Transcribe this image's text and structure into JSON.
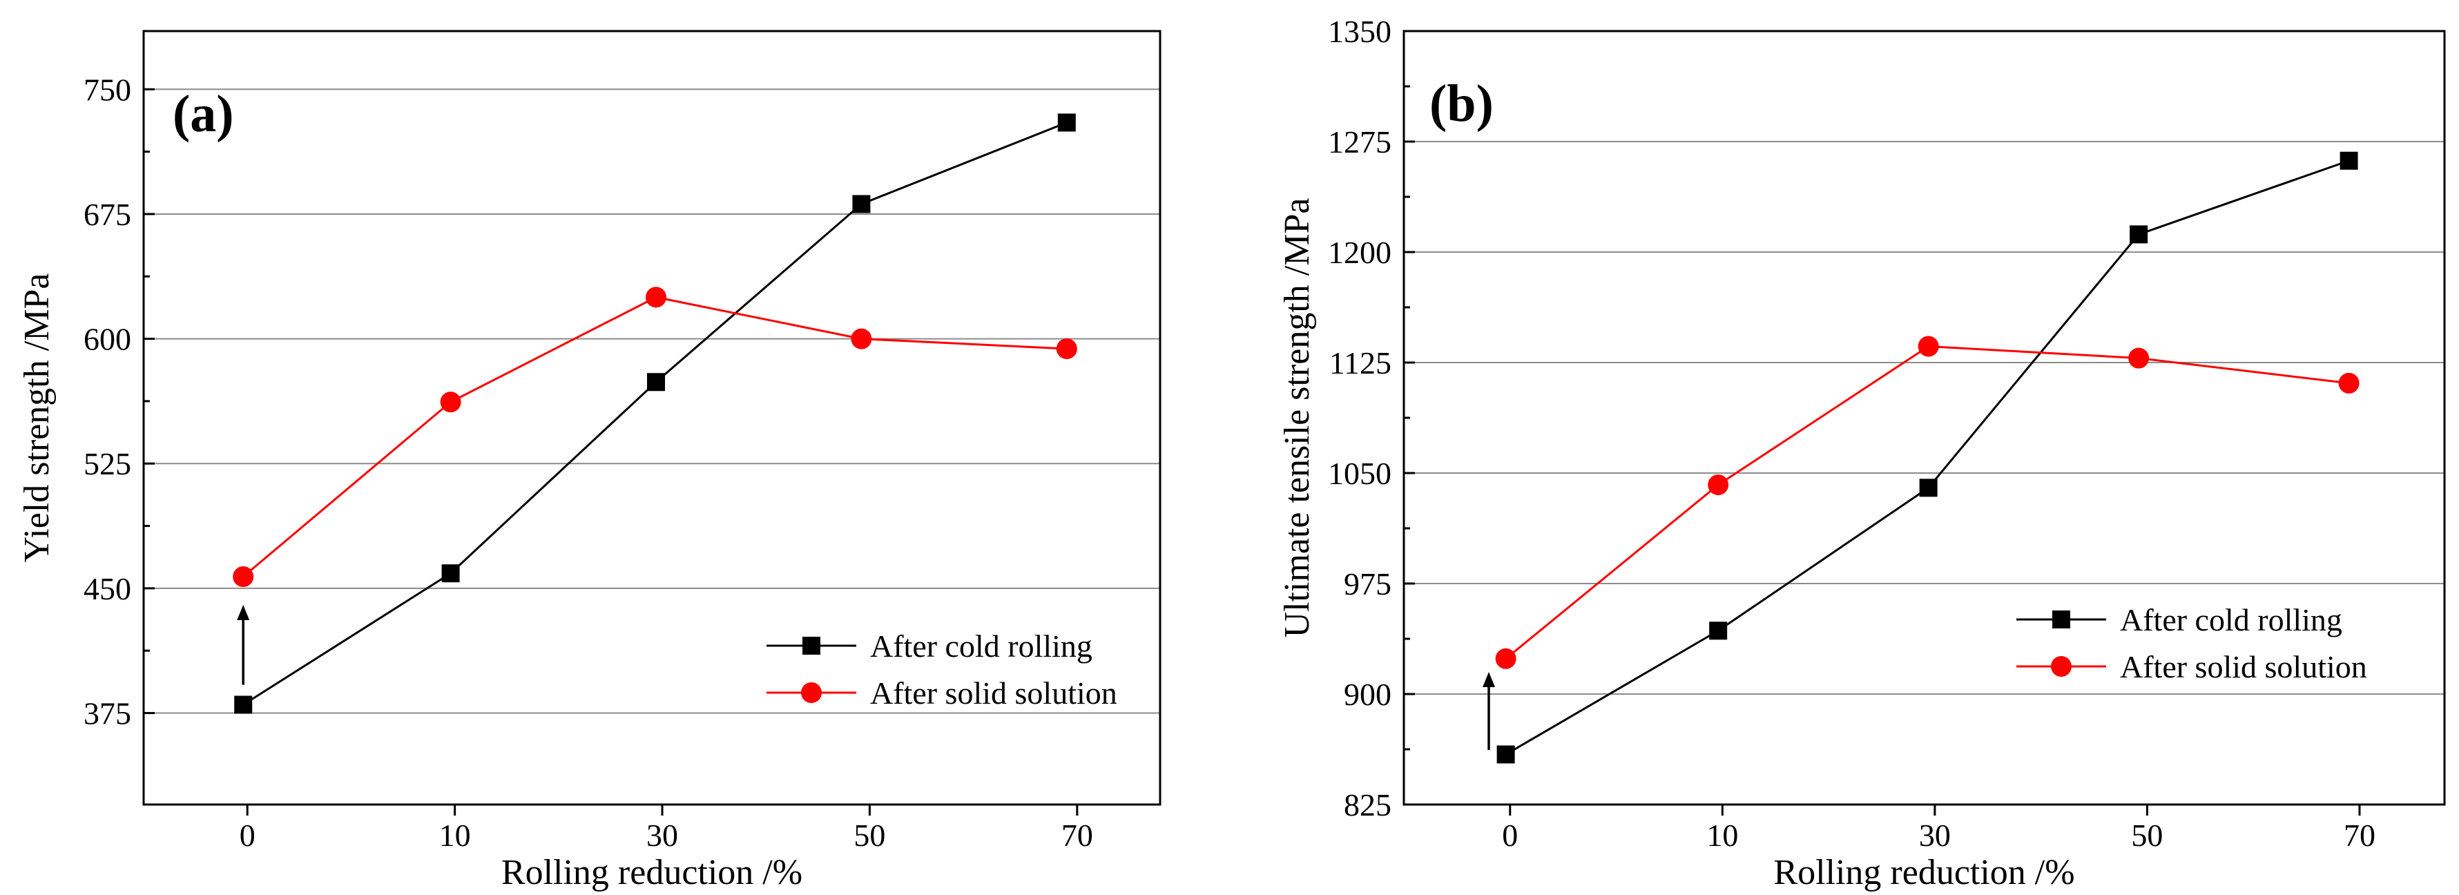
{
  "chart_data": [
    {
      "panel_label": "(a)",
      "type": "line",
      "xlabel": "Rolling reduction /%",
      "ylabel": "Yield strength /MPa",
      "categories": [
        "0",
        "10",
        "30",
        "50",
        "70"
      ],
      "xlim": [
        -0.5,
        4.4
      ],
      "ylim": [
        320,
        785
      ],
      "yticks": [
        375,
        450,
        525,
        600,
        675,
        750
      ],
      "grid": true,
      "legend_position": "bottom-right",
      "series": [
        {
          "name": "After cold rolling",
          "color": "#000000",
          "marker": "square",
          "x": [
            -0.02,
            0.98,
            1.97,
            2.96,
            3.95
          ],
          "values": [
            380,
            459,
            574,
            681,
            730
          ]
        },
        {
          "name": "After solid solution",
          "color": "#ff0000",
          "marker": "circle",
          "x": [
            -0.02,
            0.98,
            1.97,
            2.96,
            3.95
          ],
          "values": [
            457,
            562,
            625,
            600,
            594
          ]
        }
      ],
      "annotations": [
        {
          "type": "arrow",
          "x": -0.02,
          "from": 392,
          "to": 440
        }
      ]
    },
    {
      "panel_label": "(b)",
      "type": "line",
      "xlabel": "Rolling reduction /%",
      "ylabel": "Ultimate tensile strength /MPa",
      "categories": [
        "0",
        "10",
        "30",
        "50",
        "70"
      ],
      "xlim": [
        -0.5,
        4.4
      ],
      "ylim": [
        825,
        1350
      ],
      "yticks": [
        825,
        900,
        975,
        1050,
        1125,
        1200,
        1275,
        1350
      ],
      "grid": true,
      "legend_position": "bottom-right",
      "series": [
        {
          "name": "After cold rolling",
          "color": "#000000",
          "marker": "square",
          "x": [
            -0.02,
            0.98,
            1.97,
            2.96,
            3.95
          ],
          "values": [
            859,
            943,
            1040,
            1212,
            1262
          ]
        },
        {
          "name": "After solid solution",
          "color": "#ff0000",
          "marker": "circle",
          "x": [
            -0.02,
            0.98,
            1.97,
            2.96,
            3.95
          ],
          "values": [
            924,
            1042,
            1136,
            1128,
            1111
          ]
        }
      ],
      "annotations": [
        {
          "type": "arrow",
          "x": -0.1,
          "from": 862,
          "to": 915
        }
      ]
    }
  ]
}
